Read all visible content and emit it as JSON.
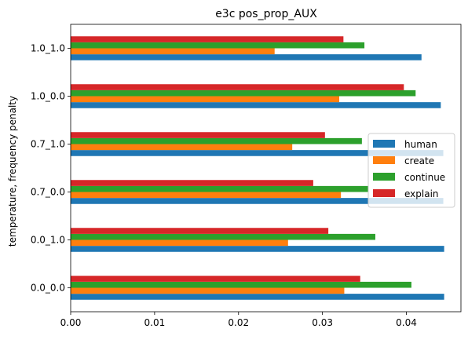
{
  "chart_data": {
    "type": "bar",
    "orientation": "horizontal",
    "title": "e3c pos_prop_AUX",
    "xlabel": "",
    "ylabel": "temperature, frequency penalty",
    "categories": [
      "0.0_0.0",
      "0.0_1.0",
      "0.7_0.0",
      "0.7_1.0",
      "1.0_0.0",
      "1.0_1.0"
    ],
    "xlim": [
      0.0,
      0.0465
    ],
    "xticks": [
      "0.00",
      "0.01",
      "0.02",
      "0.03",
      "0.04"
    ],
    "grid": false,
    "legend_position": "center-right",
    "series": [
      {
        "name": "human",
        "color": "#1f77b4",
        "values": [
          0.0445,
          0.0445,
          0.0444,
          0.0444,
          0.0441,
          0.0418
        ]
      },
      {
        "name": "create",
        "color": "#ff7f0e",
        "values": [
          0.0326,
          0.0259,
          0.0322,
          0.0264,
          0.032,
          0.0243
        ]
      },
      {
        "name": "continue",
        "color": "#2ca02c",
        "values": [
          0.0406,
          0.0363,
          0.0355,
          0.0347,
          0.0411,
          0.035
        ]
      },
      {
        "name": "explain",
        "color": "#d62728",
        "values": [
          0.0345,
          0.0307,
          0.0289,
          0.0303,
          0.0397,
          0.0325
        ]
      }
    ]
  }
}
